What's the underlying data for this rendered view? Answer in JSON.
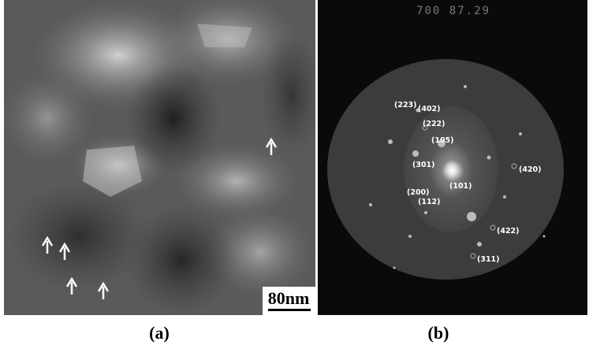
{
  "panels": [
    {
      "label": "(a)",
      "scale_bar": "80nm"
    },
    {
      "label": "(b)",
      "header": "700 87.29",
      "spots": [
        "(223)",
        "(402)",
        "(222)",
        "(105)",
        "(301)",
        "(101)",
        "(200)",
        "(112)",
        "(420)",
        "(422)",
        "(311)"
      ]
    }
  ]
}
